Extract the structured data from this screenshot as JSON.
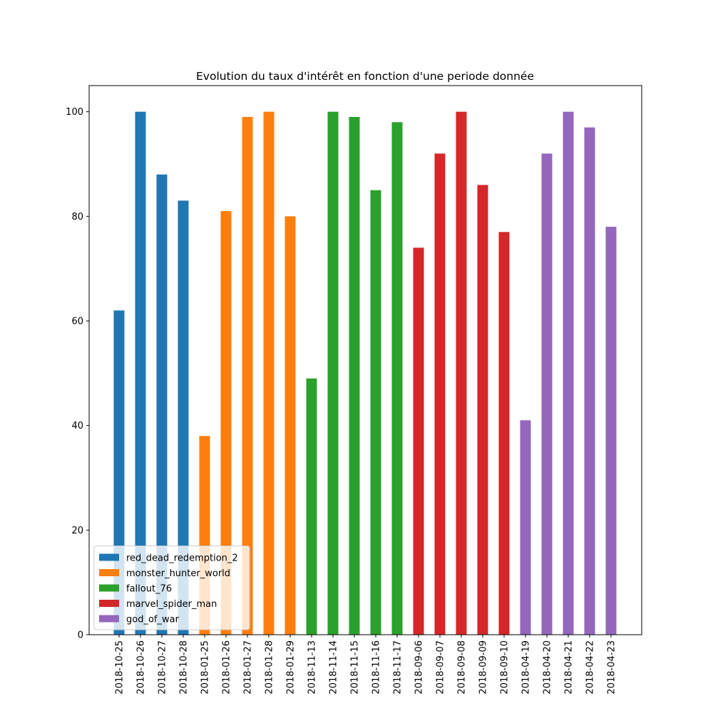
{
  "chart_data": {
    "type": "bar",
    "title": "Evolution du taux d'intérêt en fonction d'une periode donnée",
    "categories": [
      "2018-10-25",
      "2018-10-26",
      "2018-10-27",
      "2018-10-28",
      "2018-01-25",
      "2018-01-26",
      "2018-01-27",
      "2018-01-28",
      "2018-01-29",
      "2018-11-13",
      "2018-11-14",
      "2018-11-15",
      "2018-11-16",
      "2018-11-17",
      "2018-09-06",
      "2018-09-07",
      "2018-09-08",
      "2018-09-09",
      "2018-09-10",
      "2018-04-19",
      "2018-04-20",
      "2018-04-21",
      "2018-04-22",
      "2018-04-23"
    ],
    "series": [
      {
        "name": "red_dead_redemption_2",
        "color": "#1f77b4",
        "values": [
          62,
          100,
          88,
          83,
          null,
          null,
          null,
          null,
          null,
          null,
          null,
          null,
          null,
          null,
          null,
          null,
          null,
          null,
          null,
          null,
          null,
          null,
          null,
          null
        ]
      },
      {
        "name": "monster_hunter_world",
        "color": "#ff7f0e",
        "values": [
          null,
          null,
          null,
          null,
          38,
          81,
          99,
          100,
          80,
          null,
          null,
          null,
          null,
          null,
          null,
          null,
          null,
          null,
          null,
          null,
          null,
          null,
          null,
          null
        ]
      },
      {
        "name": "fallout_76",
        "color": "#2ca02c",
        "values": [
          null,
          null,
          null,
          null,
          null,
          null,
          null,
          null,
          null,
          49,
          100,
          99,
          85,
          98,
          null,
          null,
          null,
          null,
          null,
          null,
          null,
          null,
          null,
          null
        ]
      },
      {
        "name": "marvel_spider_man",
        "color": "#d62728",
        "values": [
          null,
          null,
          null,
          null,
          null,
          null,
          null,
          null,
          null,
          null,
          null,
          null,
          null,
          null,
          74,
          92,
          100,
          86,
          77,
          null,
          null,
          null,
          null,
          null
        ]
      },
      {
        "name": "god_of_war",
        "color": "#9467bd",
        "values": [
          null,
          null,
          null,
          null,
          null,
          null,
          null,
          null,
          null,
          null,
          null,
          null,
          null,
          null,
          null,
          null,
          null,
          null,
          null,
          41,
          92,
          100,
          97,
          78
        ]
      }
    ],
    "ylim": [
      0,
      105
    ],
    "yticks": [
      0,
      20,
      40,
      60,
      80,
      100
    ],
    "legend": "lower left"
  }
}
